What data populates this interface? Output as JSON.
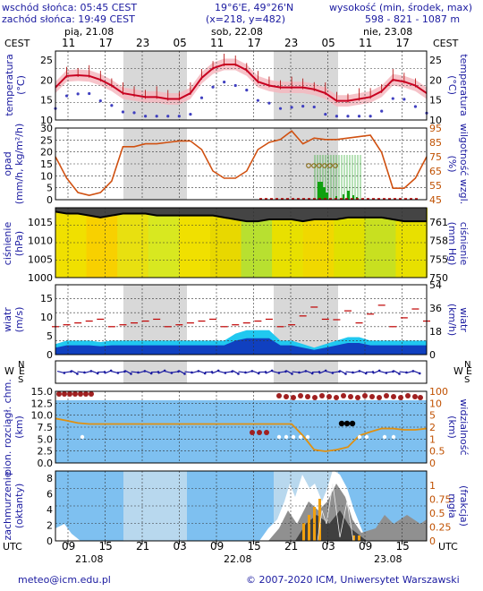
{
  "header": {
    "sunrise": "wschód słońca: 05:45 CEST",
    "sunset": "zachód słońca: 19:49 CEST",
    "coords": "19°6'E, 49°26'N",
    "grid": "(x=218, y=482)",
    "height_label": "wysokość (min, środek, max)",
    "heights": "598 - 821 - 1087 m"
  },
  "time_axis": {
    "tz": "CEST",
    "days_top": [
      "pią, 21.08",
      "sob, 22.08",
      "nie, 23.08"
    ],
    "hours_top": [
      "11",
      "17",
      "23",
      "05",
      "11",
      "17",
      "23",
      "05",
      "11",
      "17"
    ],
    "tz_bottom": "UTC",
    "hours_bottom": [
      "09",
      "15",
      "21",
      "03",
      "09",
      "15",
      "21",
      "03",
      "09",
      "15"
    ],
    "days_bottom": [
      "21.08",
      "22.08",
      "23.08"
    ]
  },
  "panels": {
    "temperature": {
      "left_label": [
        "temperatura",
        "(°C)"
      ],
      "right_label": [
        "temperatura",
        "(°C)"
      ],
      "ticks": [
        "25",
        "20",
        "15",
        "10"
      ]
    },
    "precip": {
      "left_label": [
        "opad",
        "(mm/h, kg/m²/h)"
      ],
      "right_label": [
        "wilgotność wzgl.",
        "(%)"
      ],
      "ticks_left": [
        "30",
        "25",
        "20",
        "15",
        "10",
        "5",
        "0"
      ],
      "ticks_right": [
        "95",
        "85",
        "75",
        "65",
        "55",
        "45"
      ]
    },
    "pressure": {
      "left_label": [
        "ciśnienie",
        "(hPa)"
      ],
      "right_label": [
        "ciśnienie",
        "(mm Hg)"
      ],
      "ticks_left": [
        "1015",
        "1010",
        "1005",
        "1000"
      ],
      "ticks_right": [
        "761",
        "758",
        "755",
        "750"
      ]
    },
    "wind": {
      "left_label": [
        "wiatr",
        "(m/s)"
      ],
      "right_label": [
        "wiatr",
        "(km/h)"
      ],
      "ticks_left": [
        "15",
        "10",
        "5",
        "0"
      ],
      "ticks_right": [
        "54",
        "36",
        "18",
        "0"
      ]
    },
    "winddir": {
      "left_letters": [
        "N",
        "W",
        "E",
        "S"
      ],
      "right_letters": [
        "N",
        "W",
        "E",
        "S"
      ]
    },
    "cloudbase": {
      "left_label": [
        "pion. rozciągł. chm.",
        "(km)"
      ],
      "right_label": [
        "widzialność",
        "(km)"
      ],
      "ticks_left": [
        "15.0",
        "12.5",
        "10.0",
        "7.5",
        "5.0",
        "2.5",
        "0.0"
      ],
      "ticks_right": [
        "100",
        "10",
        "5",
        "2",
        "1",
        "0.5",
        "0"
      ]
    },
    "cloudcover": {
      "left_label": [
        "zachmurzenie",
        "(oktanty)"
      ],
      "right_label": [
        "(frakcja)",
        "mgła"
      ],
      "ticks_left": [
        "8",
        "6",
        "4",
        "2",
        "0"
      ],
      "ticks_right": [
        "1",
        "0.75",
        "0.5",
        "0.25",
        "0"
      ]
    }
  },
  "chart_data": [
    {
      "type": "line",
      "title": "temperatura",
      "ylim": [
        10,
        28
      ],
      "series": [
        {
          "values": [
            18.5,
            21.5,
            21.7,
            21.5,
            20.5,
            19,
            17,
            16.5,
            16,
            16,
            15.5,
            15.5,
            17,
            21,
            23.5,
            24.5,
            24.5,
            23,
            20,
            19,
            18.5,
            18.5,
            18.5,
            18,
            17,
            15,
            15,
            15.5,
            16,
            17.5,
            20.5,
            20,
            19,
            17
          ]
        }
      ]
    },
    {
      "type": "line",
      "title": "wilgotność wzgl.",
      "ylim": [
        45,
        95
      ],
      "series": [
        {
          "values": [
            75,
            60,
            50,
            48,
            50,
            58,
            82,
            82,
            84,
            84,
            85,
            86,
            86,
            80,
            65,
            60,
            60,
            65,
            80,
            85,
            87,
            93,
            84,
            88,
            87,
            87,
            88,
            89,
            90,
            78,
            53,
            53,
            60,
            75
          ]
        }
      ]
    },
    {
      "type": "line",
      "title": "ciśnienie",
      "ylim": [
        1000,
        1018
      ],
      "series": [
        {
          "values": [
            1017,
            1016.5,
            1016.5,
            1016,
            1015.5,
            1016,
            1016.5,
            1016.5,
            1016.5,
            1016,
            1016,
            1016,
            1016,
            1016,
            1016,
            1015.5,
            1015,
            1014.5,
            1014.5,
            1015,
            1015,
            1015,
            1014.5,
            1015,
            1015,
            1015,
            1015.5,
            1015.5,
            1015.5,
            1015.5,
            1015,
            1014.5,
            1014.5,
            1014.5
          ]
        }
      ]
    },
    {
      "type": "area",
      "title": "wiatr",
      "ylim": [
        0,
        15
      ],
      "series": [
        {
          "values": [
            1.5,
            2,
            2,
            2,
            1.8,
            2,
            2,
            2,
            2,
            2,
            2,
            2,
            2,
            2,
            2,
            2,
            3,
            3.5,
            3.5,
            3.5,
            2,
            2,
            1.5,
            1,
            1.5,
            2,
            2.5,
            2.5,
            2,
            2,
            2,
            2,
            2,
            2
          ]
        }
      ]
    },
    {
      "type": "line",
      "title": "widzialność",
      "ylim": [
        0,
        100
      ],
      "series": [
        {
          "values": [
            5,
            4.5,
            4,
            3.8,
            3.8,
            3.8,
            3.8,
            3.8,
            3.8,
            3.8,
            3.8,
            3.8,
            3.8,
            3.8,
            3.8,
            3.8,
            3.8,
            3.8,
            3.8,
            3.8,
            3.8,
            3.8,
            2,
            0.7,
            0.6,
            0.7,
            0.9,
            2,
            2.5,
            3,
            3,
            2.8,
            2.8,
            3
          ]
        }
      ]
    }
  ],
  "footer": {
    "email": "meteo@icm.edu.pl",
    "copyright": "© 2007-2020 ICM, Uniwersytet Warszawski"
  }
}
